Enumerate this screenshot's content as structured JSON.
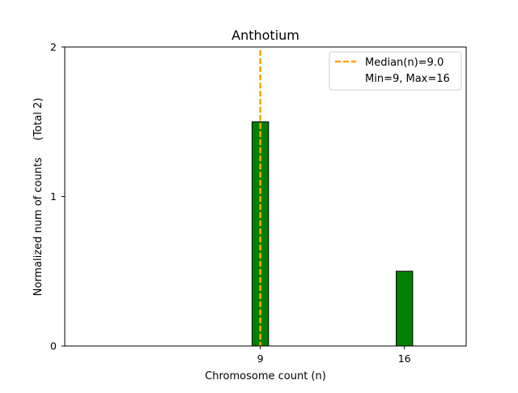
{
  "chart_data": {
    "type": "bar",
    "title": "Anthotium",
    "xlabel": "Chromosome count (n)",
    "ylabel": "Normalized num of counts     (Total 2)",
    "x_ticks": [
      9,
      16
    ],
    "y_ticks": [
      0,
      1,
      2
    ],
    "xlim": [
      -0.5,
      19
    ],
    "ylim": [
      0,
      2
    ],
    "bins": [
      {
        "x": 9,
        "value": 1.5
      },
      {
        "x": 16,
        "value": 0.5
      }
    ],
    "bar_width": 0.8,
    "median": 9.0,
    "legend": {
      "placement": "top-right",
      "median_label": "Median(n)=9.0",
      "range_label": "Min=9, Max=16"
    },
    "grid": false,
    "colors": {
      "bar_fill": "#008000",
      "bar_edge": "#000000",
      "median_line": "#FFA500"
    }
  }
}
